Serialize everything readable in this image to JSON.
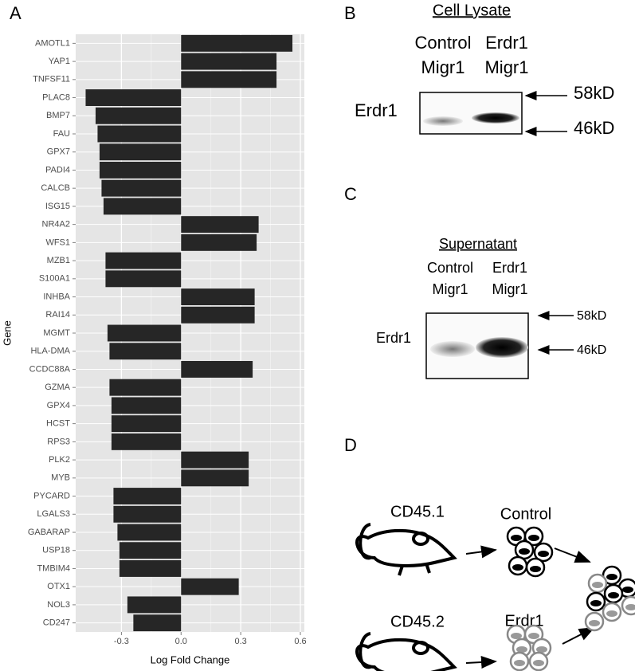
{
  "chart_data": {
    "type": "hbar",
    "x_label": "Log Fold Change",
    "y_label": "Gene",
    "categories": [
      "AMOTL1",
      "YAP1",
      "TNFSF11",
      "PLAC8",
      "BMP7",
      "FAU",
      "GPX7",
      "PADI4",
      "CALCB",
      "ISG15",
      "NR4A2",
      "WFS1",
      "MZB1",
      "S100A1",
      "INHBA",
      "RAI14",
      "MGMT",
      "HLA-DMA",
      "CCDC88A",
      "GZMA",
      "GPX4",
      "HCST",
      "RPS3",
      "PLK2",
      "MYB",
      "PYCARD",
      "LGALS3",
      "GABARAP",
      "USP18",
      "TMBIM4",
      "OTX1",
      "NOL3",
      "CD247"
    ],
    "values": [
      0.56,
      0.48,
      0.48,
      -0.48,
      -0.43,
      -0.42,
      -0.41,
      -0.41,
      -0.4,
      -0.39,
      0.39,
      0.38,
      -0.38,
      -0.38,
      0.37,
      0.37,
      -0.37,
      -0.36,
      0.36,
      -0.36,
      -0.35,
      -0.35,
      -0.35,
      0.34,
      0.34,
      -0.34,
      -0.34,
      -0.32,
      -0.31,
      -0.31,
      0.29,
      -0.27,
      -0.24
    ],
    "color": "#262626",
    "xlim": [
      -0.53,
      0.62
    ],
    "xticks": [
      -0.3,
      {
        "value": 0,
        "label": "0.0"
      },
      0.3,
      0.6
    ],
    "grid": true
  },
  "panels": {
    "a": "A",
    "b": "B",
    "c": "C",
    "d": "D"
  },
  "blot_lysate": {
    "title": "Cell Lysate",
    "lane1": [
      "Control",
      "Migr1"
    ],
    "lane2": [
      "Erdr1",
      "Migr1"
    ],
    "row_label": "Erdr1",
    "markers": [
      "58kD",
      "46kD"
    ]
  },
  "blot_supernatant": {
    "title": "Supernatant",
    "lane1": [
      "Control",
      "Migr1"
    ],
    "lane2": [
      "Erdr1",
      "Migr1"
    ],
    "row_label": "Erdr1",
    "markers": [
      "58kD",
      "46kD"
    ]
  },
  "transfer": {
    "donor1": "CD45.1",
    "group1": "Control",
    "donor2": "CD45.2",
    "group2": "Erdr1"
  }
}
